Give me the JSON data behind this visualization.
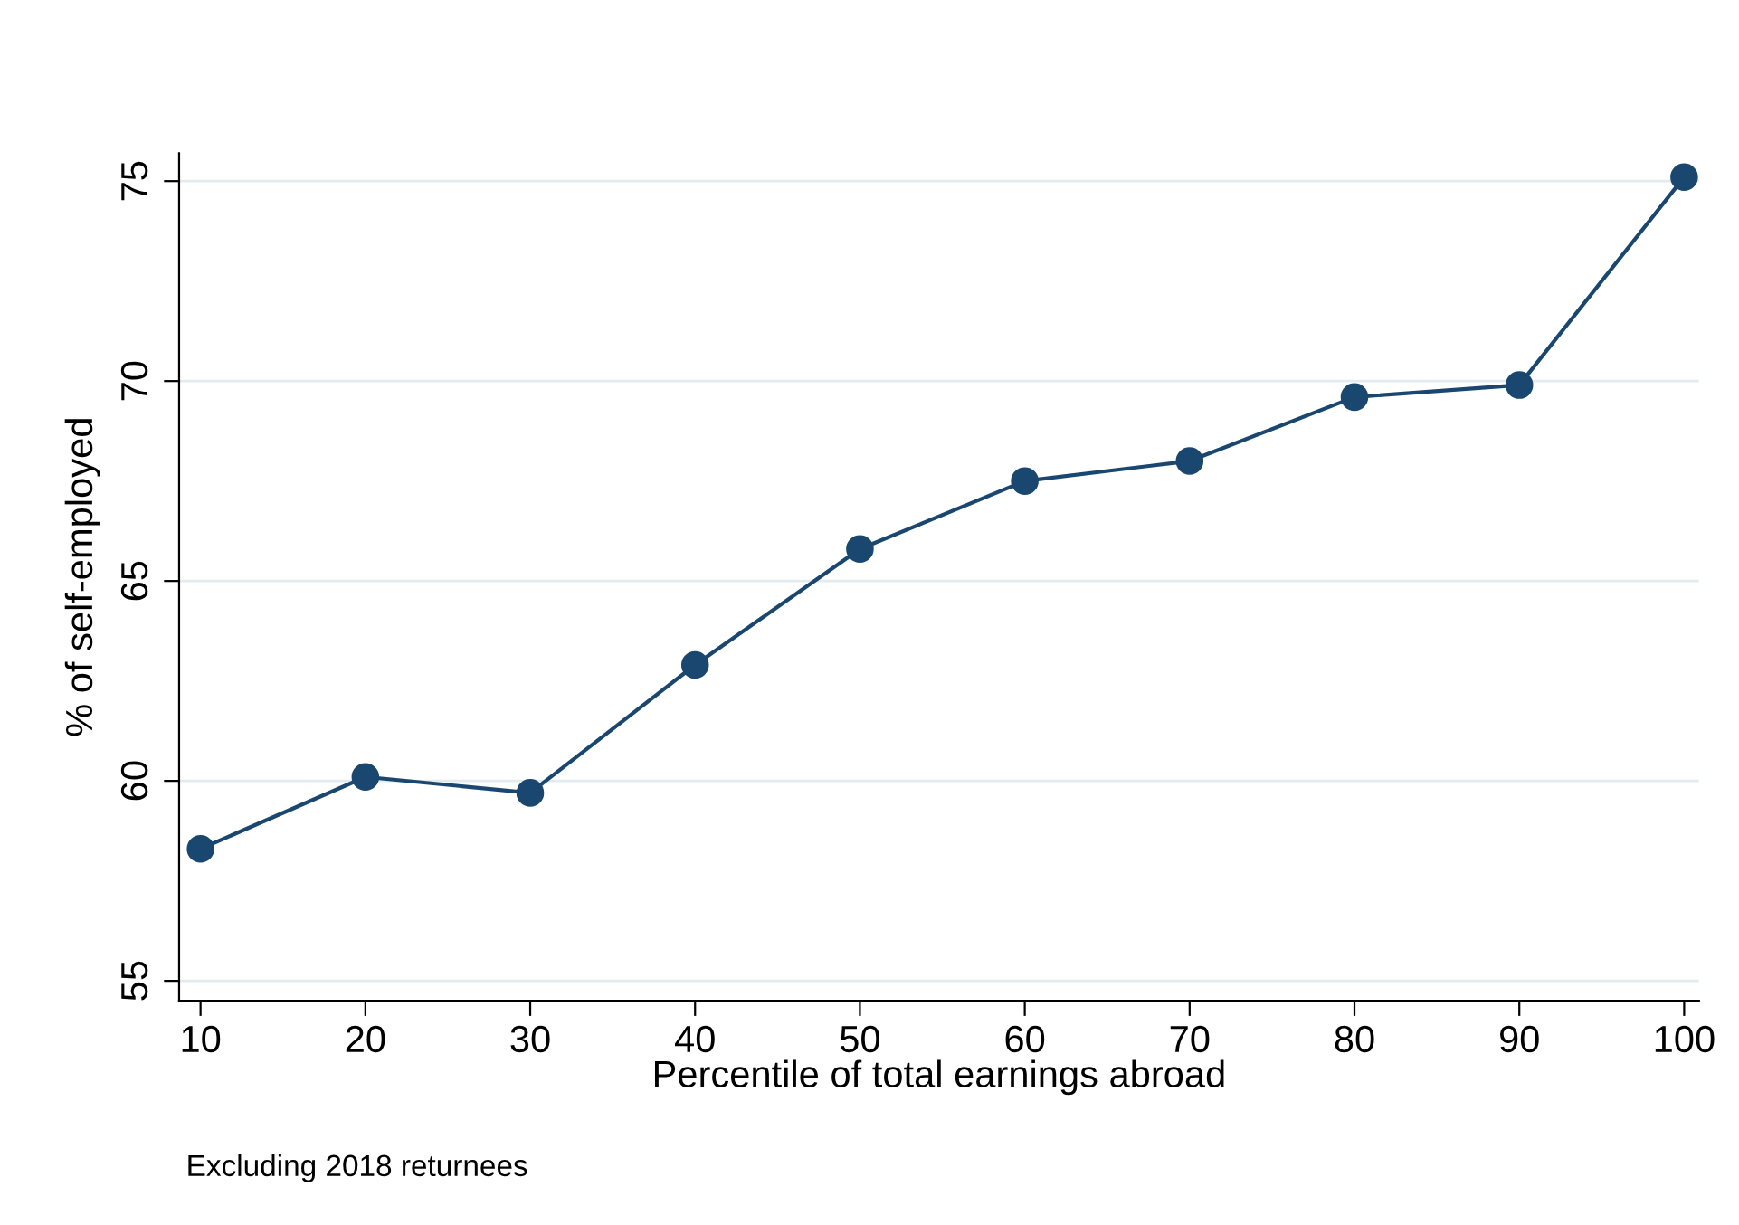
{
  "chart_data": {
    "type": "line",
    "xlabel": "Percentile of total earnings abroad",
    "ylabel": "% of self-employed",
    "annotations": [
      "Excluding 2018 returnees"
    ],
    "x": [
      10,
      20,
      30,
      40,
      50,
      60,
      70,
      80,
      90,
      100
    ],
    "series": [
      {
        "color": "#1a476f",
        "values": [
          58.3,
          60.1,
          59.7,
          62.9,
          65.8,
          67.5,
          68.0,
          69.6,
          69.9,
          75.1
        ]
      }
    ],
    "xlim": [
      8.7,
      100.9
    ],
    "ylim": [
      54.5,
      75.7
    ],
    "xticks": [
      10,
      20,
      30,
      40,
      50,
      60,
      70,
      80,
      90,
      100
    ],
    "yticks": [
      55,
      60,
      65,
      70,
      75
    ],
    "grid": "y",
    "marker": "circle",
    "line_style": "solid"
  }
}
